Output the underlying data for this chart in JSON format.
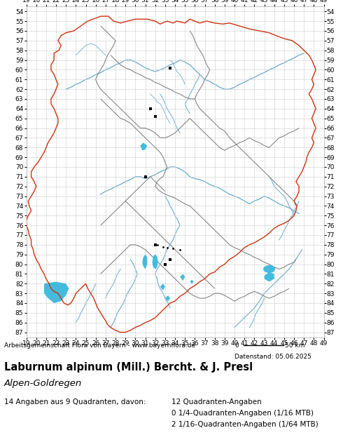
{
  "title_line1": "Laburnum alpinum (Mill.) Bercht. & J. Presl",
  "title_line2": "Alpen-Goldregen",
  "attribution": "Arbeitsgemeinschaft Flora von Bayern - www.bayernflora.de",
  "date_label": "Datenstand: 05.06.2025",
  "stats_line1": "14 Angaben aus 9 Quadranten, davon:",
  "stats_line2": "12 Quadranten-Angaben",
  "stats_line3": "0 1/4-Quadranten-Angaben (1/16 MTB)",
  "stats_line4": "2 1/16-Quadranten-Angaben (1/64 MTB)",
  "x_ticks": [
    19,
    20,
    21,
    22,
    23,
    24,
    25,
    26,
    27,
    28,
    29,
    30,
    31,
    32,
    33,
    34,
    35,
    36,
    37,
    38,
    39,
    40,
    41,
    42,
    43,
    44,
    45,
    46,
    47,
    48,
    49
  ],
  "y_ticks": [
    54,
    55,
    56,
    57,
    58,
    59,
    60,
    61,
    62,
    63,
    64,
    65,
    66,
    67,
    68,
    69,
    70,
    71,
    72,
    73,
    74,
    75,
    76,
    77,
    78,
    79,
    80,
    81,
    82,
    83,
    84,
    85,
    86,
    87
  ],
  "x_min": 19,
  "x_max": 49,
  "y_min": 54,
  "y_max": 87,
  "background_color": "#ffffff",
  "grid_color": "#cccccc",
  "outer_border_color": "#cc3311",
  "inner_border_color": "#777777",
  "water_fill_color": "#44bbdd",
  "water_line_color": "#66aacc",
  "dot_color": "#000000",
  "tick_fontsize": 6.5
}
